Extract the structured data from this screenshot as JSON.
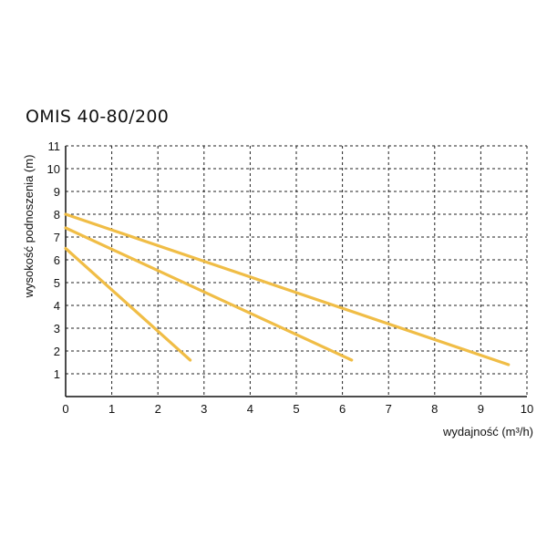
{
  "colors": {
    "curve": "#f0bd46",
    "grid": "#222222",
    "axis": "#111111",
    "text": "#111111"
  },
  "chart_data": {
    "type": "line",
    "title": "OMIS 40-80/200",
    "xlabel": "wydajność (m³/h)",
    "ylabel": "wysokość podnoszenia (m)",
    "xlim": [
      0,
      10
    ],
    "ylim": [
      0,
      11
    ],
    "x_ticks": [
      "0",
      "1",
      "2",
      "3",
      "4",
      "5",
      "6",
      "7",
      "8",
      "9",
      "10"
    ],
    "y_ticks": [
      "1",
      "2",
      "3",
      "4",
      "5",
      "6",
      "7",
      "8",
      "9",
      "10",
      "11"
    ],
    "grid": true,
    "series": [
      {
        "x": [
          0,
          2.7
        ],
        "values": [
          6.5,
          1.6
        ]
      },
      {
        "x": [
          0,
          6.2
        ],
        "values": [
          7.4,
          1.6
        ]
      },
      {
        "x": [
          0,
          9.6
        ],
        "values": [
          8.0,
          1.4
        ]
      }
    ]
  }
}
